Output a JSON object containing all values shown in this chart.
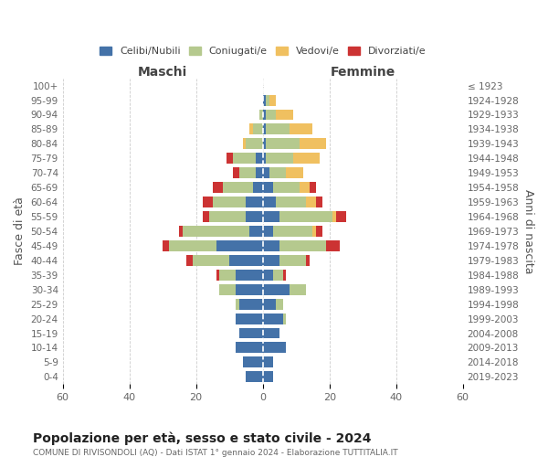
{
  "age_groups": [
    "0-4",
    "5-9",
    "10-14",
    "15-19",
    "20-24",
    "25-29",
    "30-34",
    "35-39",
    "40-44",
    "45-49",
    "50-54",
    "55-59",
    "60-64",
    "65-69",
    "70-74",
    "75-79",
    "80-84",
    "85-89",
    "90-94",
    "95-99",
    "100+"
  ],
  "birth_years": [
    "2019-2023",
    "2014-2018",
    "2009-2013",
    "2004-2008",
    "1999-2003",
    "1994-1998",
    "1989-1993",
    "1984-1988",
    "1979-1983",
    "1974-1978",
    "1969-1973",
    "1964-1968",
    "1959-1963",
    "1954-1958",
    "1949-1953",
    "1944-1948",
    "1939-1943",
    "1934-1938",
    "1929-1933",
    "1924-1928",
    "≤ 1923"
  ],
  "maschi": {
    "celibi": [
      5,
      6,
      8,
      7,
      8,
      7,
      8,
      8,
      10,
      14,
      4,
      5,
      5,
      3,
      2,
      2,
      0,
      0,
      0,
      0,
      0
    ],
    "coniugati": [
      0,
      0,
      0,
      0,
      0,
      1,
      5,
      5,
      11,
      14,
      20,
      11,
      10,
      9,
      5,
      7,
      5,
      3,
      1,
      0,
      0
    ],
    "vedovi": [
      0,
      0,
      0,
      0,
      0,
      0,
      0,
      0,
      0,
      0,
      0,
      0,
      0,
      0,
      0,
      0,
      1,
      1,
      0,
      0,
      0
    ],
    "divorziati": [
      0,
      0,
      0,
      0,
      0,
      0,
      0,
      1,
      2,
      2,
      1,
      2,
      3,
      3,
      2,
      2,
      0,
      0,
      0,
      0,
      0
    ]
  },
  "femmine": {
    "nubili": [
      3,
      3,
      7,
      5,
      6,
      4,
      8,
      3,
      5,
      5,
      3,
      5,
      4,
      3,
      2,
      1,
      1,
      1,
      1,
      1,
      0
    ],
    "coniugate": [
      0,
      0,
      0,
      0,
      1,
      2,
      5,
      3,
      8,
      14,
      12,
      16,
      9,
      8,
      5,
      8,
      10,
      7,
      3,
      1,
      0
    ],
    "vedove": [
      0,
      0,
      0,
      0,
      0,
      0,
      0,
      0,
      0,
      0,
      1,
      1,
      3,
      3,
      5,
      8,
      8,
      7,
      5,
      2,
      0
    ],
    "divorziate": [
      0,
      0,
      0,
      0,
      0,
      0,
      0,
      1,
      1,
      4,
      2,
      3,
      2,
      2,
      0,
      0,
      0,
      0,
      0,
      0,
      0
    ]
  },
  "colors": {
    "celibi": "#4472a8",
    "coniugati": "#b5c98e",
    "vedovi": "#f0c060",
    "divorziati": "#cc3333"
  },
  "title": "Popolazione per età, sesso e stato civile - 2024",
  "subtitle": "COMUNE DI RIVISONDOLI (AQ) - Dati ISTAT 1° gennaio 2024 - Elaborazione TUTTITALIA.IT",
  "xlabel_left": "Maschi",
  "xlabel_right": "Femmine",
  "ylabel_left": "Fasce di età",
  "ylabel_right": "Anni di nascita",
  "xlim": 60,
  "legend_labels": [
    "Celibi/Nubili",
    "Coniugati/e",
    "Vedovi/e",
    "Divorziati/e"
  ],
  "bg_color": "#ffffff",
  "grid_color": "#cccccc"
}
